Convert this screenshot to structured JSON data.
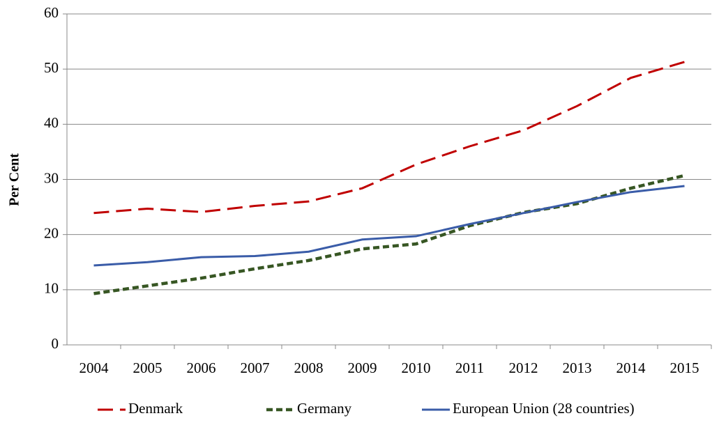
{
  "chart_data": {
    "type": "line",
    "y_label": "Per Cent",
    "categories": [
      "2004",
      "2005",
      "2006",
      "2007",
      "2008",
      "2009",
      "2010",
      "2011",
      "2012",
      "2013",
      "2014",
      "2015"
    ],
    "series": [
      {
        "name": "Denmark",
        "color": "#c00000",
        "dash": "dashed",
        "values": [
          23.9,
          24.7,
          24.1,
          25.2,
          26.0,
          28.4,
          32.7,
          36.0,
          38.9,
          43.3,
          48.4,
          51.3
        ]
      },
      {
        "name": "Germany",
        "color": "#375623",
        "dash": "dotted",
        "values": [
          9.3,
          10.7,
          12.1,
          13.8,
          15.3,
          17.4,
          18.3,
          21.6,
          24.0,
          25.6,
          28.4,
          30.7
        ]
      },
      {
        "name": "European Union (28 countries)",
        "color": "#3a5ca8",
        "dash": "solid",
        "values": [
          14.4,
          15.0,
          15.9,
          16.1,
          16.9,
          19.1,
          19.7,
          21.9,
          23.9,
          25.9,
          27.7,
          28.8
        ]
      }
    ],
    "ylim": [
      0,
      60
    ],
    "yticks": [
      0,
      10,
      20,
      30,
      40,
      50,
      60
    ],
    "grid": true,
    "legend": "bottom"
  }
}
